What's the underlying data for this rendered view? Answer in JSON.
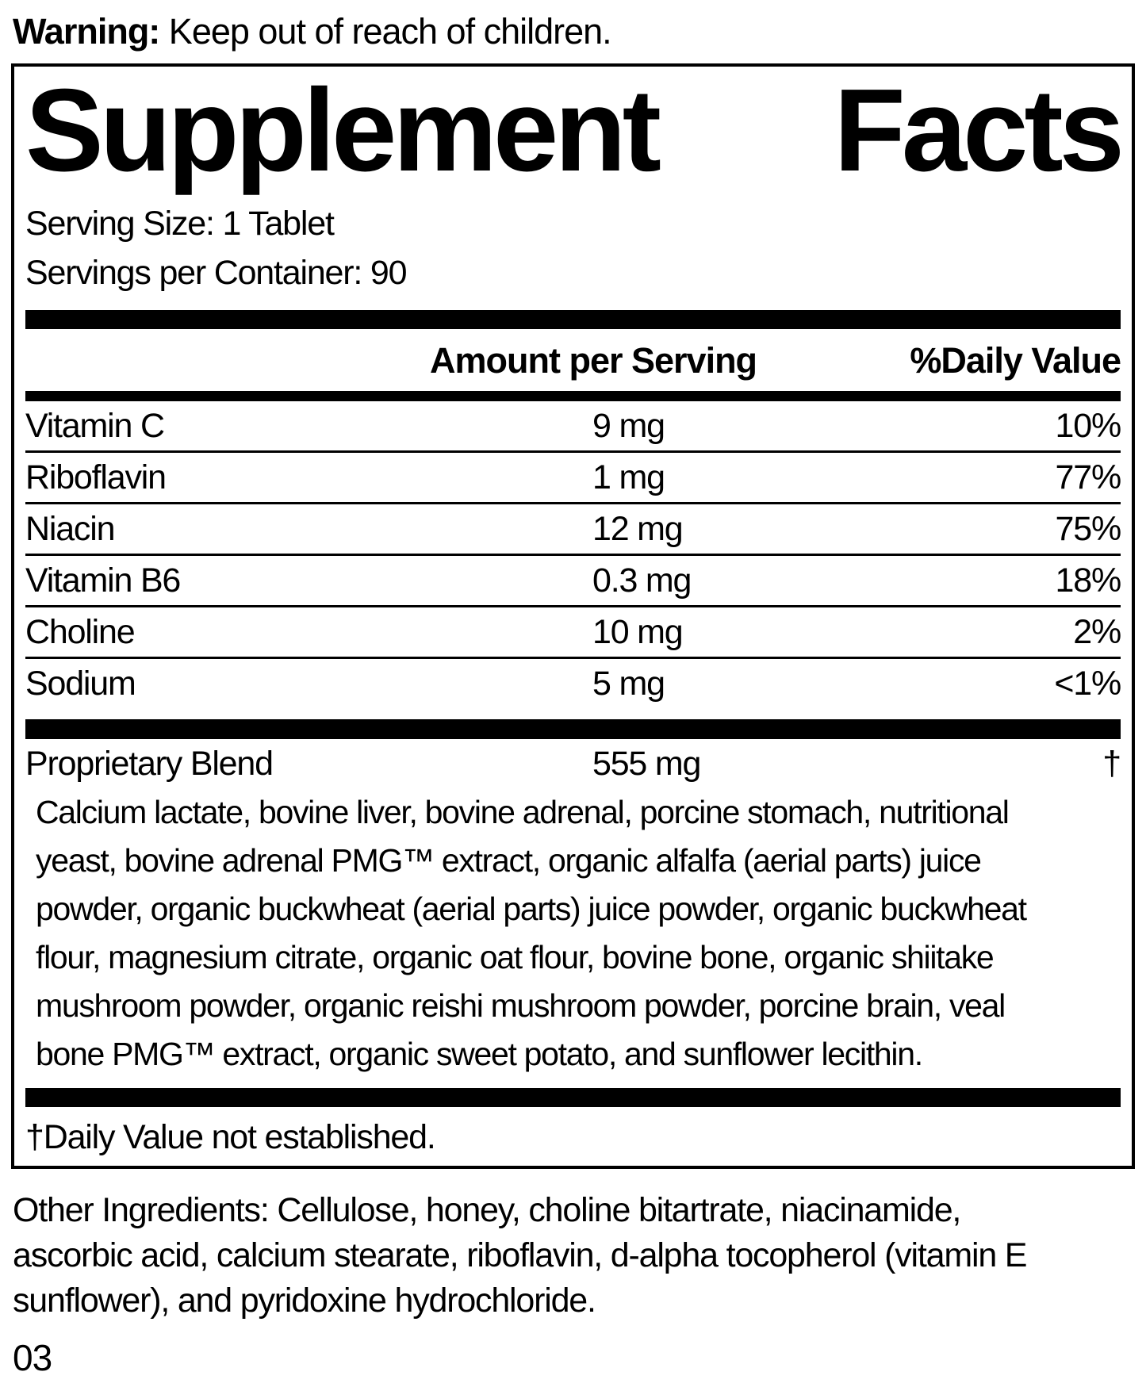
{
  "warning": {
    "label": "Warning:",
    "text": " Keep out of reach of children."
  },
  "panel": {
    "title": {
      "word1": "Supplement",
      "word2": "Facts"
    },
    "serving_size": "Serving Size: 1 Tablet",
    "servings_per_container": "Servings per Container: 90",
    "column_headers": {
      "amount": "Amount per Serving",
      "daily_value": "%Daily Value"
    },
    "rows": [
      {
        "name": "Vitamin C",
        "amount": "9 mg",
        "dv": "10%"
      },
      {
        "name": "Riboflavin",
        "amount": "1 mg",
        "dv": "77%"
      },
      {
        "name": "Niacin",
        "amount": "12 mg",
        "dv": "75%"
      },
      {
        "name": "Vitamin B6",
        "amount": "0.3 mg",
        "dv": "18%"
      },
      {
        "name": "Choline",
        "amount": "10 mg",
        "dv": "2%"
      },
      {
        "name": "Sodium",
        "amount": "5 mg",
        "dv": "<1%"
      }
    ],
    "blend": {
      "name": "Proprietary Blend",
      "amount": "555 mg",
      "dv": "†",
      "lines": [
        "Calcium lactate, bovine liver, bovine adrenal, porcine stomach, nutritional",
        "yeast, bovine adrenal PMG™ extract, organic alfalfa (aerial parts) juice",
        "powder, organic buckwheat (aerial parts) juice powder, organic buckwheat",
        "flour, magnesium citrate, organic oat flour, bovine bone, organic shiitake",
        "mushroom powder, organic reishi mushroom powder, porcine brain, veal",
        "bone PMG™ extract, organic sweet potato, and sunflower lecithin."
      ]
    },
    "footnote": "†Daily Value not established."
  },
  "other_ingredients": {
    "lines": [
      "Other Ingredients: Cellulose, honey, choline bitartrate, niacinamide,",
      "ascorbic acid, calcium stearate, riboflavin, d-alpha tocopherol (vitamin E",
      "sunflower), and pyridoxine hydrochloride."
    ]
  },
  "page_code": "03",
  "colors": {
    "ink": "#000000",
    "background": "#ffffff"
  }
}
